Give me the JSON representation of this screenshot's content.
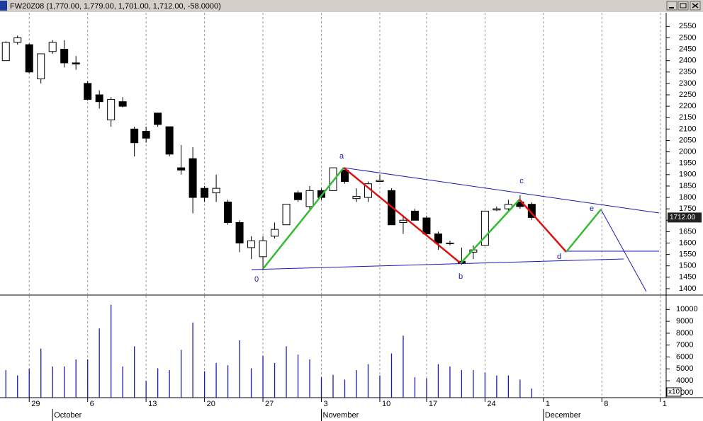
{
  "window": {
    "title": "FW20Z08 (1,770.00, 1,779.00, 1,701.00, 1,712.00, -58.0000)"
  },
  "chart_data": [
    {
      "type": "candlestick",
      "x": [
        0,
        1,
        2,
        3,
        4,
        5,
        6,
        7,
        8,
        9,
        10,
        11,
        12,
        13,
        14,
        15,
        16,
        17,
        18,
        19,
        20,
        21,
        22,
        23,
        24,
        25,
        26,
        27,
        28,
        29,
        30,
        31,
        32,
        33,
        34,
        35,
        36,
        37,
        38,
        39,
        40,
        41,
        42,
        43,
        44,
        45
      ],
      "open": [
        2400,
        2480,
        2470,
        2320,
        2440,
        2450,
        2390,
        2300,
        2250,
        2140,
        2220,
        2100,
        2090,
        2170,
        2110,
        1930,
        1970,
        1840,
        1820,
        1780,
        1690,
        1580,
        1540,
        1630,
        1680,
        1820,
        1760,
        1830,
        1830,
        1920,
        1795,
        1800,
        1870,
        1830,
        1690,
        1740,
        1710,
        1640,
        1600,
        1520,
        1560,
        1590,
        1745,
        1750,
        1780,
        1770
      ],
      "high": [
        2485,
        2510,
        2475,
        2430,
        2490,
        2490,
        2420,
        2310,
        2270,
        2240,
        2240,
        2110,
        2110,
        2170,
        2110,
        2030,
        2020,
        1850,
        1900,
        1790,
        1700,
        1630,
        1630,
        1690,
        1770,
        1830,
        1850,
        1840,
        1930,
        1920,
        1840,
        1870,
        1900,
        1840,
        1720,
        1750,
        1720,
        1650,
        1610,
        1580,
        1590,
        1740,
        1760,
        1790,
        1810,
        1779
      ],
      "low": [
        2400,
        2470,
        2345,
        2300,
        2430,
        2370,
        2360,
        2225,
        2190,
        2110,
        2195,
        1980,
        2040,
        2110,
        1980,
        1900,
        1730,
        1780,
        1780,
        1680,
        1560,
        1530,
        1480,
        1620,
        1680,
        1780,
        1750,
        1790,
        1830,
        1860,
        1780,
        1780,
        1870,
        1680,
        1640,
        1700,
        1630,
        1570,
        1590,
        1505,
        1530,
        1590,
        1740,
        1740,
        1750,
        1701
      ],
      "close": [
        2480,
        2500,
        2350,
        2430,
        2480,
        2390,
        2385,
        2230,
        2220,
        2230,
        2200,
        2040,
        2060,
        2120,
        1990,
        1920,
        1800,
        1800,
        1840,
        1690,
        1600,
        1610,
        1610,
        1660,
        1770,
        1790,
        1830,
        1800,
        1930,
        1870,
        1805,
        1860,
        1875,
        1680,
        1700,
        1700,
        1640,
        1600,
        1600,
        1510,
        1570,
        1740,
        1750,
        1770,
        1760,
        1712
      ],
      "up_color": "#ffffff",
      "down_color": "#000000",
      "wick_color": "#000000",
      "xlim": [
        -0.5,
        56.5
      ],
      "xticks": [
        {
          "value": 2,
          "label": "29"
        },
        {
          "value": 7,
          "label": "6"
        },
        {
          "value": 12,
          "label": "13"
        },
        {
          "value": 17,
          "label": "20"
        },
        {
          "value": 22,
          "label": "27"
        },
        {
          "value": 27,
          "label": "3"
        },
        {
          "value": 32,
          "label": "10"
        },
        {
          "value": 36,
          "label": "17"
        },
        {
          "value": 41,
          "label": "24"
        },
        {
          "value": 46,
          "label": "1"
        },
        {
          "value": 51,
          "label": "8"
        },
        {
          "value": 56,
          "label": "1"
        }
      ],
      "month_ticks": [
        {
          "value": 4,
          "label": "October"
        },
        {
          "value": 27,
          "label": "November"
        },
        {
          "value": 46,
          "label": "December"
        }
      ],
      "ylim": [
        1375,
        2610
      ],
      "yticks": [
        1400,
        1450,
        1500,
        1550,
        1600,
        1650,
        1700,
        1750,
        1800,
        1850,
        1900,
        1950,
        2000,
        2050,
        2100,
        2150,
        2200,
        2250,
        2300,
        2350,
        2400,
        2450,
        2500,
        2550
      ],
      "grid": "x",
      "annotations": [
        "0",
        "a",
        "b",
        "c",
        "d",
        "e"
      ],
      "last_price_label": "1712.00"
    },
    {
      "type": "bar",
      "values": [
        4900,
        4450,
        5000,
        6700,
        5200,
        5200,
        5800,
        5800,
        8400,
        10400,
        5200,
        6900,
        4000,
        5050,
        4900,
        6600,
        8900,
        4800,
        5500,
        5300,
        7400,
        5050,
        6100,
        5500,
        6900,
        6200,
        5800,
        4300,
        4500,
        4100,
        4900,
        5400,
        4450,
        6300,
        7800,
        4300,
        4200,
        5400,
        5200,
        4900,
        4900,
        4700,
        4450,
        4450,
        4100,
        3350
      ],
      "color": "#1a1ab4",
      "ylim": [
        2580,
        11150
      ],
      "yticks": [
        3000,
        4000,
        5000,
        6000,
        7000,
        8000,
        9000,
        10000
      ],
      "y_unit_label": "x10"
    }
  ]
}
